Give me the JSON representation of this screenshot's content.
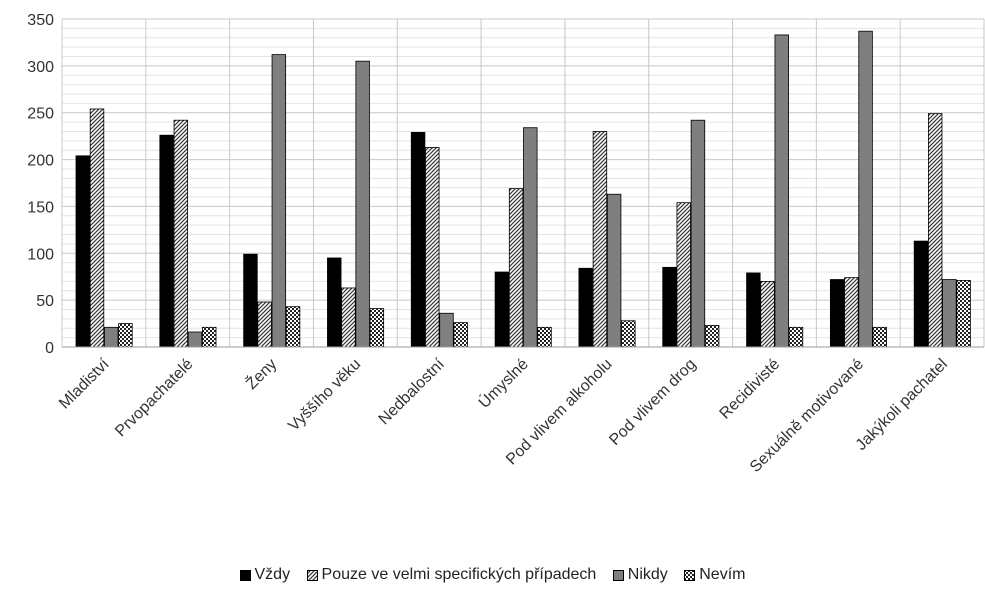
{
  "chart_data": {
    "type": "bar",
    "title": "",
    "xlabel": "",
    "ylabel": "",
    "ylim": [
      0,
      350
    ],
    "yticks": [
      0,
      50,
      100,
      150,
      200,
      250,
      300,
      350
    ],
    "grid": true,
    "legend_position": "bottom",
    "categories": [
      "Mladiství",
      "Prvopachatelé",
      "Ženy",
      "Vyššího věku",
      "Nedbalostní",
      "Úmyslné",
      "Pod vlivem alkoholu",
      "Pod vlivem drog",
      "Recidivisté",
      "Sexuálně motivované",
      "Jakýkoli pachatel"
    ],
    "series": [
      {
        "name": "Vždy",
        "fill": "solid-black",
        "values": [
          204,
          226,
          99,
          95,
          229,
          80,
          84,
          85,
          79,
          72,
          113
        ]
      },
      {
        "name": "Pouze ve velmi specifických případech",
        "fill": "hatched-gray",
        "values": [
          254,
          242,
          48,
          63,
          213,
          169,
          230,
          154,
          70,
          74,
          249
        ]
      },
      {
        "name": "Nikdy",
        "fill": "gray",
        "values": [
          21,
          16,
          312,
          305,
          36,
          234,
          163,
          242,
          333,
          337,
          72
        ]
      },
      {
        "name": "Nevím",
        "fill": "checkered",
        "values": [
          25,
          21,
          43,
          41,
          26,
          21,
          28,
          23,
          21,
          21,
          71
        ]
      }
    ]
  }
}
